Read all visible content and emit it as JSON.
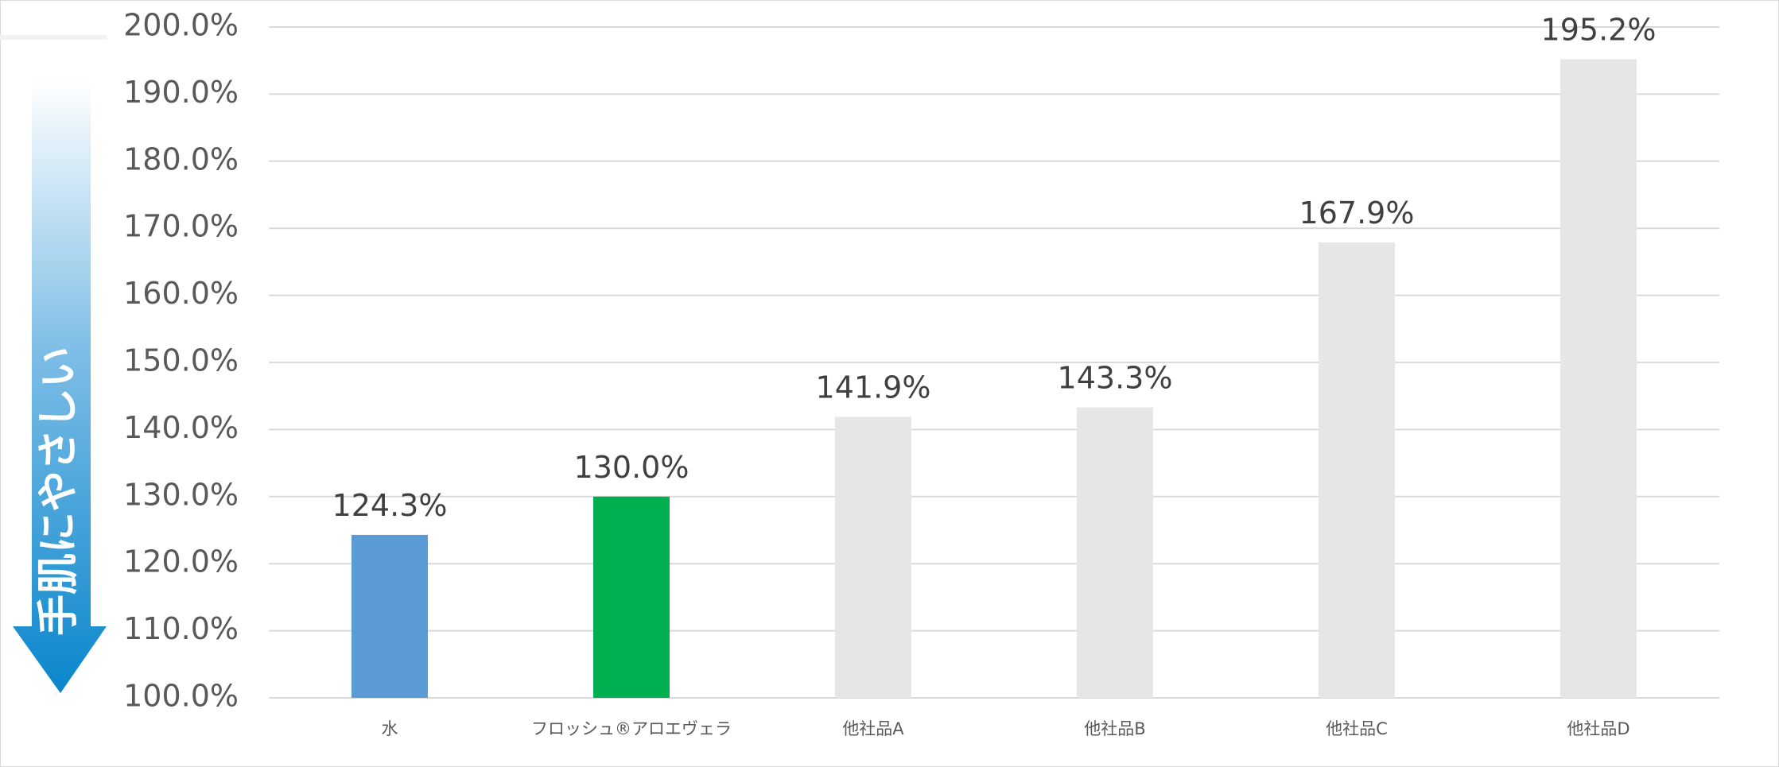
{
  "side_label": "手肌にやさしい",
  "colors": {
    "gridline": "#d9d9d9",
    "axis_text": "#595959",
    "label_text": "#404040",
    "arrow_top": "#ffffff",
    "arrow_bottom": "#0a86cc"
  },
  "chart_data": {
    "type": "bar",
    "title": "",
    "xlabel": "",
    "ylabel": "",
    "categories": [
      "水",
      "フロッシュ®アロエヴェラ",
      "他社品A",
      "他社品B",
      "他社品C",
      "他社品D"
    ],
    "values": [
      124.3,
      130.0,
      141.9,
      143.3,
      167.9,
      195.2
    ],
    "value_labels": [
      "124.3%",
      "130.0%",
      "141.9%",
      "143.3%",
      "167.9%",
      "195.2%"
    ],
    "bar_colors": [
      "#5b9bd5",
      "#00b050",
      "#e7e6e6",
      "#e7e6e6",
      "#e7e6e6",
      "#e7e6e6"
    ],
    "ylim": [
      100,
      200
    ],
    "yticks": [
      100,
      110,
      120,
      130,
      140,
      150,
      160,
      170,
      180,
      190,
      200
    ],
    "ytick_labels": [
      "100.0%",
      "110.0%",
      "120.0%",
      "130.0%",
      "140.0%",
      "150.0%",
      "160.0%",
      "170.0%",
      "180.0%",
      "190.0%",
      "200.0%"
    ],
    "grid": true,
    "legend": "none"
  }
}
